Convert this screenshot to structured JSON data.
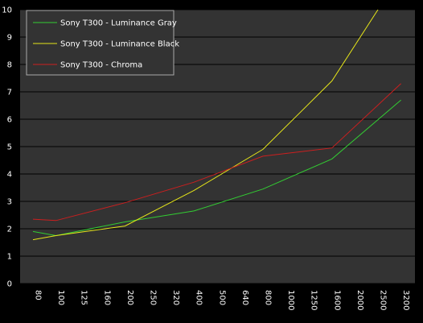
{
  "chart_data": {
    "type": "line",
    "title": "",
    "xlabel": "",
    "ylabel": "",
    "categories": [
      "80",
      "100",
      "125",
      "160",
      "200",
      "250",
      "320",
      "400",
      "500",
      "640",
      "800",
      "1000",
      "1250",
      "1600",
      "2000",
      "2500",
      "3200"
    ],
    "ylim": [
      0,
      10
    ],
    "yticks": [
      "0",
      "1",
      "2",
      "3",
      "4",
      "5",
      "6",
      "7",
      "8",
      "9",
      "10"
    ],
    "grid": true,
    "legend_position": "top-left",
    "colors": {
      "background": "#000000",
      "plot_area": "#333333",
      "grid": "#000000",
      "legend_background": "#333333",
      "legend_border": "#aaaaaa"
    },
    "series": [
      {
        "name": "Sony T300 - Luminance Gray",
        "color": "#33cc33",
        "points": [
          {
            "x": "80",
            "y": 1.9
          },
          {
            "x": "100",
            "y": 1.75
          },
          {
            "x": "200",
            "y": 2.25
          },
          {
            "x": "400",
            "y": 2.65
          },
          {
            "x": "800",
            "y": 3.45
          },
          {
            "x": "1600",
            "y": 4.55
          },
          {
            "x": "3200",
            "y": 6.7
          }
        ]
      },
      {
        "name": "Sony T300 - Luminance Black",
        "color": "#e6e619",
        "points": [
          {
            "x": "80",
            "y": 1.6
          },
          {
            "x": "100",
            "y": 1.75
          },
          {
            "x": "200",
            "y": 2.1
          },
          {
            "x": "400",
            "y": 3.4
          },
          {
            "x": "800",
            "y": 4.9
          },
          {
            "x": "1600",
            "y": 7.4
          },
          {
            "x": "2500",
            "y": 10.0
          }
        ]
      },
      {
        "name": "Sony T300 - Chroma",
        "color": "#cc1f1f",
        "points": [
          {
            "x": "80",
            "y": 2.35
          },
          {
            "x": "100",
            "y": 2.3
          },
          {
            "x": "200",
            "y": 2.95
          },
          {
            "x": "400",
            "y": 3.7
          },
          {
            "x": "800",
            "y": 4.65
          },
          {
            "x": "1600",
            "y": 4.95
          },
          {
            "x": "3200",
            "y": 7.3
          }
        ]
      }
    ]
  }
}
